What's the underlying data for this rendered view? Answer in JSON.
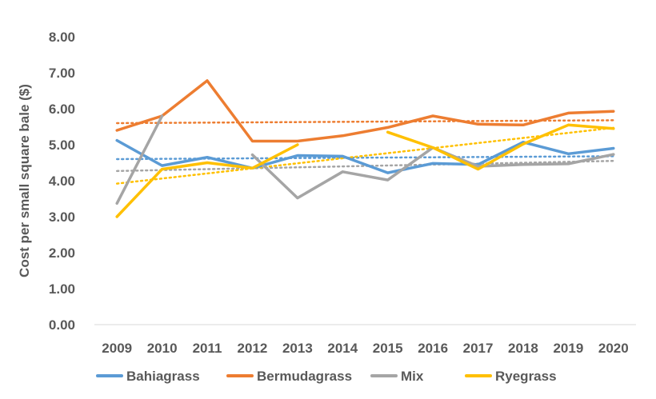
{
  "chart_data": {
    "type": "line",
    "ylabel": "Cost per small square bale ($)",
    "xlabel": "",
    "title": "",
    "ylim": [
      0,
      8
    ],
    "yticks": [
      "0.00",
      "1.00",
      "2.00",
      "3.00",
      "4.00",
      "5.00",
      "6.00",
      "7.00",
      "8.00"
    ],
    "categories": [
      "2009",
      "2010",
      "2011",
      "2012",
      "2013",
      "2014",
      "2015",
      "2016",
      "2017",
      "2018",
      "2019",
      "2020"
    ],
    "legend_position": "bottom",
    "grid": false,
    "trendlines": true,
    "series": [
      {
        "name": "Bahiagrass",
        "color": "#5B9BD5",
        "values": [
          5.12,
          4.42,
          4.65,
          4.35,
          4.7,
          4.68,
          4.22,
          4.48,
          4.45,
          5.07,
          4.75,
          4.9
        ],
        "trend": [
          4.6,
          4.68
        ]
      },
      {
        "name": "Bermudagrass",
        "color": "#ED7D31",
        "values": [
          5.4,
          5.8,
          6.78,
          5.1,
          5.1,
          5.25,
          5.48,
          5.8,
          5.57,
          5.55,
          5.88,
          5.93
        ],
        "trend": [
          5.6,
          5.68
        ]
      },
      {
        "name": "Mix",
        "color": "#A5A5A5",
        "values": [
          3.37,
          5.8,
          null,
          4.72,
          3.52,
          4.25,
          4.02,
          4.92,
          4.4,
          4.45,
          4.47,
          4.73
        ],
        "trend": [
          4.27,
          4.55
        ]
      },
      {
        "name": "Ryegrass",
        "color": "#FFC000",
        "values": [
          3.0,
          4.32,
          4.5,
          4.35,
          5.0,
          null,
          5.35,
          4.92,
          4.32,
          5.02,
          5.55,
          5.45
        ],
        "trend": [
          3.92,
          5.47
        ]
      }
    ]
  }
}
